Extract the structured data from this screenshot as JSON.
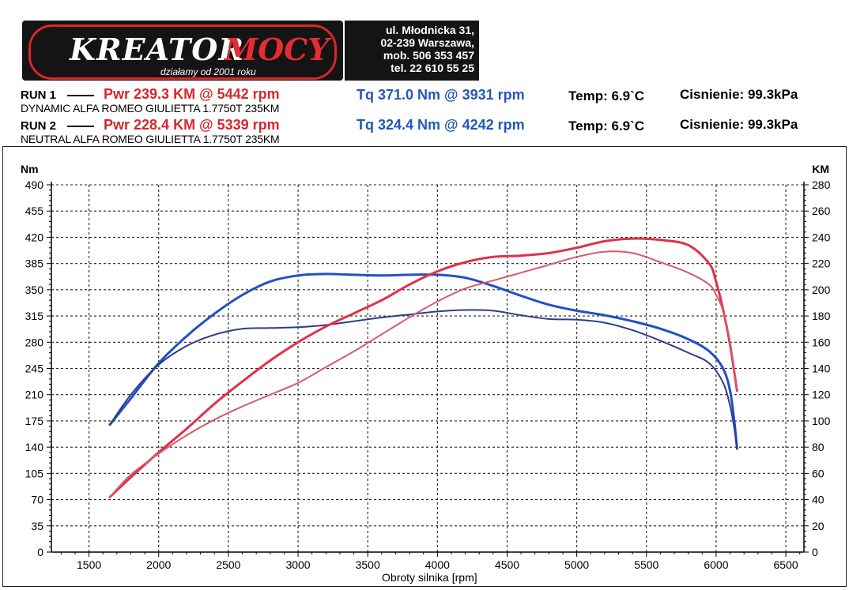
{
  "logo": {
    "word_a": "KREATOR",
    "word_b": "MOCY",
    "slogan": "działamy od 2001 roku"
  },
  "address": {
    "line1": "ul. Młodnicka 31,",
    "line2": "02-239  Warszawa,",
    "line3": "mob.  506 353 457",
    "line4": "tel.  22 610 55 25"
  },
  "runs": [
    {
      "label": "RUN 1",
      "pwr": "Pwr  239.3 KM @ 5442 rpm",
      "tq": "Tq 371.0 Nm @ 3931 rpm",
      "temp": "Temp: 6.9`C",
      "pressure": "Cisnienie: 99.3kPa",
      "description": "DYNAMIC ALFA ROMEO GIULIETTA 1.7750T 235KM"
    },
    {
      "label": "RUN 2",
      "pwr": "Pwr  228.4 KM @ 5339 rpm",
      "tq": "Tq 324.4 Nm @ 4242 rpm",
      "temp": "Temp: 6.9`C",
      "pressure": "Cisnienie: 99.3kPa",
      "description": "NEUTRAL ALFA ROMEO GIULIETTA 1.7750T 235KM"
    }
  ],
  "colors": {
    "power_run1": "#e0314a",
    "power_run2": "#d65a6e",
    "torque_run1": "#2350c4",
    "torque_run2": "#2b3f86",
    "text_red": "#d8262c",
    "text_blue": "#2457b8"
  },
  "chart_data": {
    "type": "line",
    "xlabel": "Obroty silnika [rpm]",
    "ylabel_left": "Nm",
    "ylabel_right": "KM",
    "xlim": [
      1230,
      6630
    ],
    "ylim_left": [
      0,
      490
    ],
    "ylim_right": [
      0,
      280
    ],
    "x_ticks": [
      1500,
      2000,
      2500,
      3000,
      3500,
      4000,
      4500,
      5000,
      5500,
      6000,
      6500
    ],
    "y_ticks_left": [
      0,
      35,
      70,
      105,
      140,
      175,
      210,
      245,
      280,
      315,
      350,
      385,
      420,
      455,
      490
    ],
    "y_ticks_right": [
      0,
      20,
      40,
      60,
      80,
      100,
      120,
      140,
      160,
      180,
      200,
      220,
      240,
      260,
      280
    ],
    "grid": true,
    "series": [
      {
        "name": "RUN 1",
        "quantity": "torque",
        "axis": "left",
        "color": "#2350c4",
        "x": [
          1650,
          1800,
          2000,
          2200,
          2400,
          2600,
          2800,
          3000,
          3200,
          3400,
          3600,
          3800,
          4000,
          4200,
          4400,
          4600,
          4800,
          5000,
          5200,
          5400,
          5600,
          5800,
          5950,
          6050,
          6100,
          6130,
          6150
        ],
        "y": [
          170,
          205,
          252,
          288,
          318,
          343,
          361,
          369,
          371,
          370,
          369,
          370,
          370,
          366,
          355,
          342,
          330,
          322,
          316,
          308,
          298,
          284,
          268,
          245,
          215,
          175,
          138
        ]
      },
      {
        "name": "RUN 2",
        "quantity": "torque",
        "axis": "left",
        "color": "#2b3f86",
        "x": [
          1650,
          1800,
          2000,
          2200,
          2400,
          2600,
          2800,
          3000,
          3200,
          3400,
          3600,
          3800,
          4000,
          4200,
          4400,
          4600,
          4800,
          5000,
          5200,
          5400,
          5600,
          5800,
          5950,
          6050,
          6100,
          6130,
          6150
        ],
        "y": [
          170,
          210,
          250,
          275,
          290,
          298,
          299,
          300,
          303,
          308,
          313,
          317,
          321,
          323,
          322,
          316,
          311,
          310,
          306,
          296,
          282,
          266,
          252,
          226,
          195,
          165,
          138
        ]
      },
      {
        "name": "RUN 1",
        "quantity": "power",
        "axis": "right",
        "color": "#e0314a",
        "x": [
          1650,
          1800,
          2000,
          2200,
          2400,
          2600,
          2800,
          3000,
          3200,
          3400,
          3600,
          3800,
          4000,
          4200,
          4400,
          4600,
          4800,
          5000,
          5200,
          5400,
          5600,
          5800,
          5950,
          6000,
          6050,
          6100,
          6150
        ],
        "y": [
          42,
          57,
          76,
          94,
          113,
          130,
          146,
          160,
          172,
          182,
          192,
          204,
          214,
          221,
          225,
          226,
          228,
          232,
          237,
          239,
          238,
          234,
          220,
          206,
          185,
          158,
          123
        ]
      },
      {
        "name": "RUN 2",
        "quantity": "power",
        "axis": "right",
        "color": "#d65a6e",
        "x": [
          1650,
          1800,
          2000,
          2200,
          2400,
          2600,
          2800,
          3000,
          3200,
          3400,
          3600,
          3800,
          4000,
          4200,
          4400,
          4600,
          4800,
          5000,
          5200,
          5400,
          5600,
          5800,
          5950,
          6000,
          6050,
          6100,
          6150
        ],
        "y": [
          42,
          59,
          75,
          89,
          101,
          111,
          120,
          129,
          141,
          153,
          166,
          179,
          191,
          201,
          207,
          213,
          219,
          225,
          229,
          228,
          221,
          213,
          204,
          196,
          184,
          160,
          124
        ]
      }
    ]
  }
}
